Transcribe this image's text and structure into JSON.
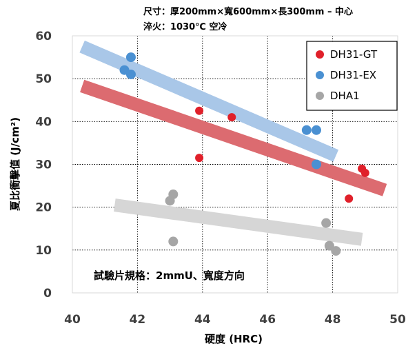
{
  "chart_data": {
    "type": "scatter",
    "conditions": [
      "尺寸：厚200mm×寬600mm×長300mm – 中心",
      "淬火：1030℃ 空冷"
    ],
    "xlabel": "硬度 (HRC)",
    "ylabel": "夏比衝擊值 (J/cm²)",
    "xlim": [
      40,
      50
    ],
    "ylim": [
      0,
      60
    ],
    "x_ticks": [
      "40",
      "42",
      "44",
      "46",
      "48",
      "50"
    ],
    "y_ticks": [
      "0",
      "10",
      "20",
      "30",
      "40",
      "50",
      "60"
    ],
    "annotation": "試驗片規格：2mmU、寬度方向",
    "legend_position": "top-right",
    "series": [
      {
        "name": "DH31-GT",
        "color": "#e0202a",
        "trend_color": "#dc6b70",
        "points": [
          [
            43.9,
            42.5
          ],
          [
            43.9,
            31.5
          ],
          [
            44.9,
            41.0
          ],
          [
            47.5,
            30.0
          ],
          [
            48.5,
            22.0
          ],
          [
            48.9,
            29.0
          ],
          [
            49.0,
            28.0
          ]
        ],
        "trend": [
          [
            40.3,
            48.3
          ],
          [
            49.6,
            24.0
          ]
        ]
      },
      {
        "name": "DH31-EX",
        "color": "#4a90d2",
        "trend_color": "#a9c7e8",
        "points": [
          [
            41.6,
            52.0
          ],
          [
            41.8,
            55.0
          ],
          [
            41.8,
            51.0
          ],
          [
            47.2,
            38.0
          ],
          [
            47.5,
            38.0
          ],
          [
            47.5,
            30.0
          ]
        ],
        "trend": [
          [
            40.3,
            57.5
          ],
          [
            48.1,
            32.0
          ]
        ]
      },
      {
        "name": "DHA1",
        "color": "#a6a6a6",
        "trend_color": "#d6d6d6",
        "points": [
          [
            43.1,
            23.0
          ],
          [
            43.0,
            21.5
          ],
          [
            43.1,
            12.0
          ],
          [
            47.8,
            16.3
          ],
          [
            47.9,
            11.0
          ],
          [
            48.1,
            9.8
          ]
        ],
        "trend": [
          [
            41.3,
            20.5
          ],
          [
            48.9,
            12.5
          ]
        ]
      }
    ]
  }
}
